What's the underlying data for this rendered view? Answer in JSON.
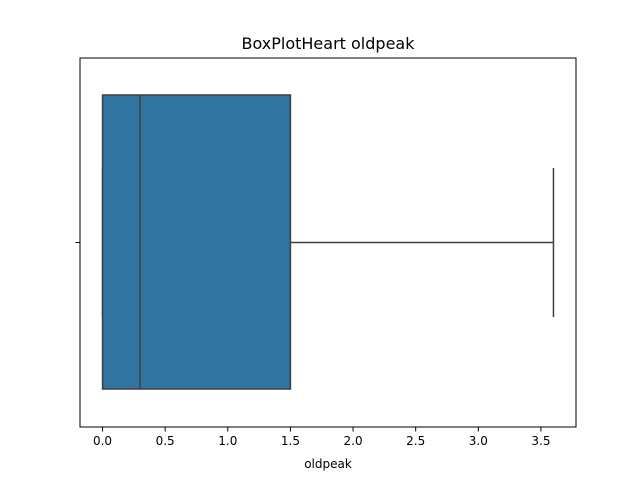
{
  "chart_data": {
    "type": "box",
    "title": "BoxPlotHeart oldpeak",
    "xlabel": "oldpeak",
    "ylabel": "",
    "xlim": [
      -0.18,
      3.78
    ],
    "xticks": [
      0.0,
      0.5,
      1.0,
      1.5,
      2.0,
      2.5,
      3.0,
      3.5
    ],
    "xtick_labels": [
      "0.0",
      "0.5",
      "1.0",
      "1.5",
      "2.0",
      "2.5",
      "3.0",
      "3.5"
    ],
    "orientation": "horizontal",
    "box": {
      "whisker_low": 0.0,
      "q1": 0.0,
      "median": 0.3,
      "q3": 1.5,
      "whisker_high": 3.6,
      "outliers": []
    },
    "colors": {
      "box_fill": "#3274a1",
      "line": "#3f3f3f"
    },
    "grid": false
  }
}
